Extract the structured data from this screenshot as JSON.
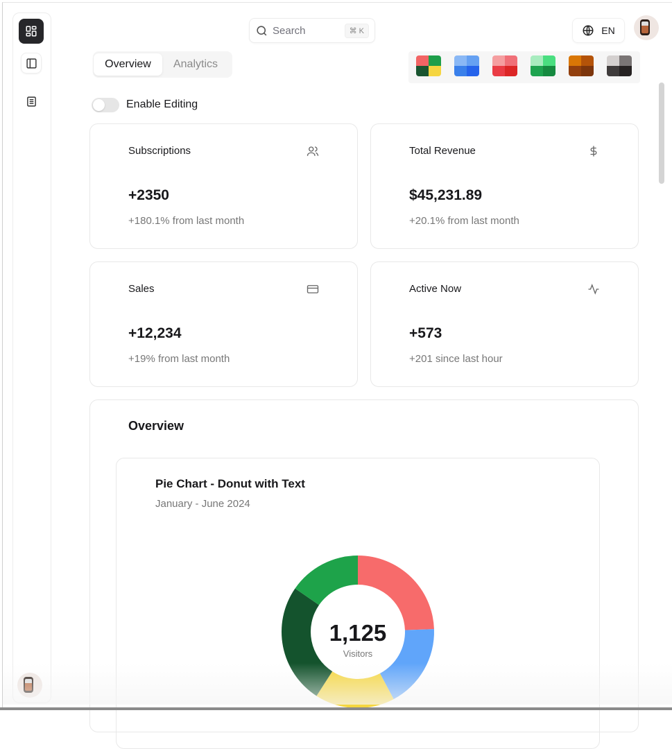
{
  "header": {
    "search_placeholder": "Search",
    "search_shortcut": "⌘ K",
    "language": "EN"
  },
  "sidebar": {
    "items": [
      {
        "icon": "dashboard-icon",
        "active": true
      },
      {
        "icon": "panel-left-icon"
      },
      {
        "icon": "document-list-icon"
      }
    ]
  },
  "tabs": [
    {
      "label": "Overview",
      "active": true
    },
    {
      "label": "Analytics",
      "active": false
    }
  ],
  "themes": [
    {
      "name": "multicolor",
      "colors": [
        "#f26464",
        "#1e9e4a",
        "#1a5530",
        "#f5d540"
      ]
    },
    {
      "name": "blue",
      "colors": [
        "#8ab8f5",
        "#66a1f2",
        "#3a80ea",
        "#2563eb"
      ]
    },
    {
      "name": "red",
      "colors": [
        "#f59ea0",
        "#f07078",
        "#ea3c45",
        "#dc2626"
      ]
    },
    {
      "name": "green",
      "colors": [
        "#a8ecbf",
        "#4ade80",
        "#1ea34f",
        "#168a40"
      ]
    },
    {
      "name": "orange",
      "colors": [
        "#d97706",
        "#b45309",
        "#92400e",
        "#7c350c"
      ]
    },
    {
      "name": "neutral",
      "colors": [
        "#d4d0cf",
        "#7a7575",
        "#3f3b3b",
        "#262222"
      ]
    }
  ],
  "editing": {
    "label": "Enable Editing",
    "enabled": false
  },
  "cards": [
    {
      "title": "Subscriptions",
      "icon": "users-icon",
      "value": "+2350",
      "sub": "+180.1% from last month"
    },
    {
      "title": "Total Revenue",
      "icon": "dollar-icon",
      "value": "$45,231.89",
      "sub": "+20.1% from last month"
    },
    {
      "title": "Sales",
      "icon": "credit-card-icon",
      "value": "+12,234",
      "sub": "+19% from last month"
    },
    {
      "title": "Active Now",
      "icon": "activity-icon",
      "value": "+573",
      "sub": "+201 since last hour"
    }
  ],
  "overview": {
    "title": "Overview"
  },
  "chart_data": {
    "type": "pie",
    "title": "Pie Chart - Donut with Text",
    "subtitle": "January - June 2024",
    "center_value": "1,125",
    "center_label": "Visitors",
    "values": [
      275,
      200,
      190,
      287,
      173
    ],
    "colors": [
      "#f76b6b",
      "#60a5fa",
      "#f5d63f",
      "#14532d",
      "#1ea34a"
    ]
  }
}
